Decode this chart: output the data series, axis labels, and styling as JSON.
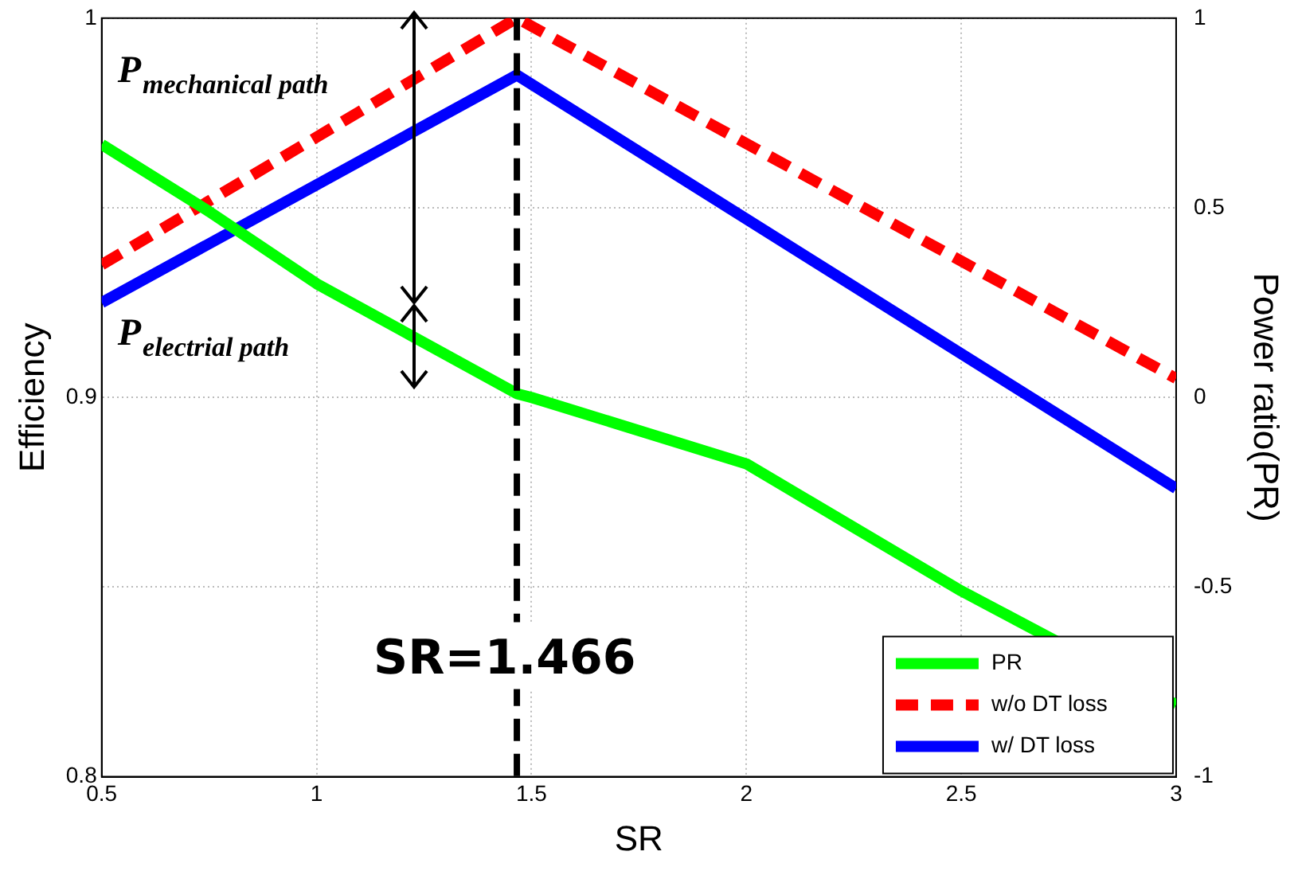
{
  "chart_data": {
    "type": "line",
    "xlabel": "SR",
    "ylabel": "Efficiency",
    "y2label": "Power ratio(PR)",
    "x": [
      0.5,
      0.75,
      1.0,
      1.466,
      1.5,
      2.0,
      2.5,
      3.0
    ],
    "series": [
      {
        "name": "PR",
        "color": "#00ff00",
        "axis": "y2",
        "values": [
          0.667,
          0.49,
          0.3,
          0.01,
          0.0,
          -0.175,
          -0.51,
          -0.81
        ]
      },
      {
        "name": "w/o DT loss",
        "color": "#ff0000",
        "line_style": "dashed",
        "x": [
          0.5,
          1.466,
          3.0
        ],
        "values": [
          0.935,
          1.0,
          0.905
        ]
      },
      {
        "name": "w/ DT loss",
        "color": "#0000ff",
        "x": [
          0.5,
          1.466,
          3.0
        ],
        "values": [
          0.925,
          0.985,
          0.876
        ]
      }
    ],
    "xlim": [
      0.5,
      3
    ],
    "xticks": [
      0.5,
      1,
      1.5,
      2,
      2.5,
      3
    ],
    "ylim": [
      0.8,
      1
    ],
    "yticks": [
      0.8,
      {
        "value": 0.85,
        "label": null
      },
      0.9,
      {
        "value": 0.95,
        "label": null
      },
      1
    ],
    "y2lim": [
      -1,
      1
    ],
    "y2ticks": [
      -1,
      -0.5,
      0,
      0.5,
      1
    ],
    "ref_lines": [
      {
        "axis": "x",
        "value": 1.466,
        "label": "SR=1.466",
        "color": "#000000",
        "line_style": "dashed"
      }
    ],
    "annotations": [
      "P$_{mechanical path}$",
      "P$_{electrial path}$"
    ],
    "grid": true,
    "legend": "bottom right",
    "marker": "none"
  }
}
